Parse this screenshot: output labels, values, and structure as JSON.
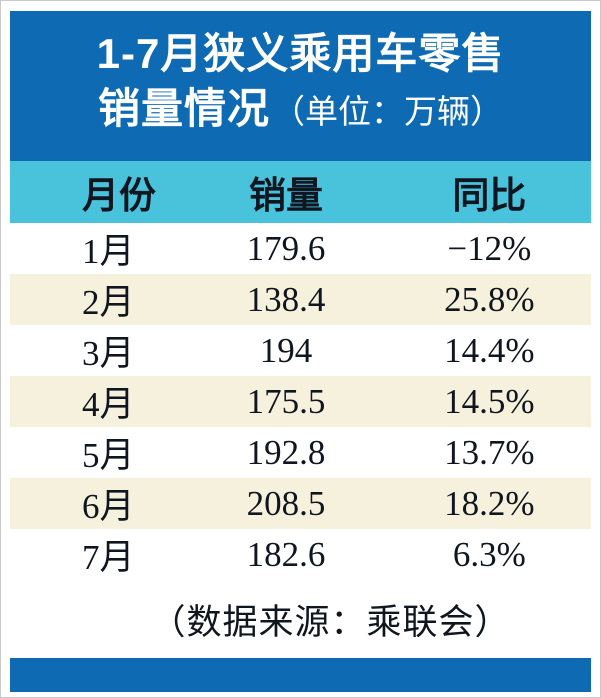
{
  "title": {
    "line1": "1-7月狭义乘用车零售",
    "line2": "销量情况",
    "unit": "（单位：万辆）"
  },
  "table": {
    "headers": [
      "月份",
      "销量",
      "同比"
    ],
    "rows": [
      [
        "1月",
        "179.6",
        "−12%"
      ],
      [
        "2月",
        "138.4",
        "25.8%"
      ],
      [
        "3月",
        "194",
        "14.4%"
      ],
      [
        "4月",
        "175.5",
        "14.5%"
      ],
      [
        "5月",
        "192.8",
        "13.7%"
      ],
      [
        "6月",
        "208.5",
        "18.2%"
      ],
      [
        "7月",
        "182.6",
        "6.3%"
      ]
    ]
  },
  "footer": {
    "source_note": "（数据来源：乘联会）"
  },
  "colors": {
    "panel_blue": "#0d6ab3",
    "header_cyan": "#49c3dc",
    "row_cream": "#f6f1dc",
    "row_white": "#ffffff",
    "text_dark": "#10161f",
    "title_white": "#ffffff"
  },
  "chart_data": {
    "type": "table",
    "title": "1-7月狭义乘用车零售销量情况",
    "unit": "万辆",
    "columns": [
      "月份",
      "销量",
      "同比"
    ],
    "categories": [
      "1月",
      "2月",
      "3月",
      "4月",
      "5月",
      "6月",
      "7月"
    ],
    "series": [
      {
        "name": "销量(万辆)",
        "values": [
          179.6,
          138.4,
          194,
          175.5,
          192.8,
          208.5,
          182.6
        ]
      },
      {
        "name": "同比(%)",
        "values": [
          -12,
          25.8,
          14.4,
          14.5,
          13.7,
          18.2,
          6.3
        ]
      }
    ],
    "source": "乘联会"
  }
}
